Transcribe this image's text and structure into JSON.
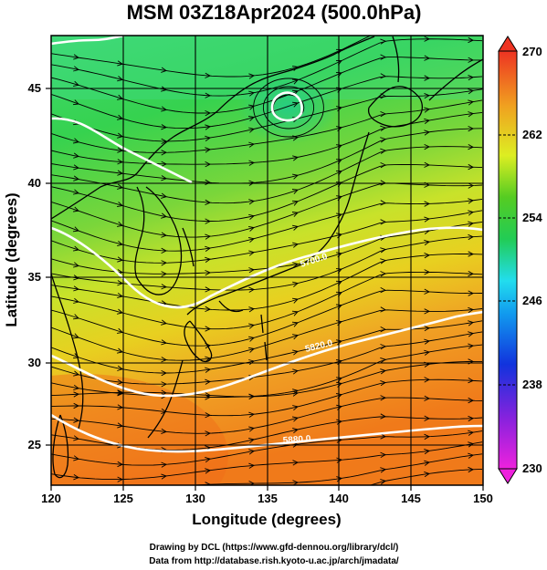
{
  "title": "MSM 03Z18Apr2024 (500.0hPa)",
  "map": {
    "xlabel": "Longitude (degrees)",
    "ylabel": "Latitude  (degrees)",
    "lon_range": [
      120,
      150
    ],
    "lat_range": [
      22.7,
      47.8
    ],
    "lon_ticks": [
      "120",
      "125",
      "130",
      "135",
      "140",
      "145",
      "150"
    ],
    "lat_ticks": [
      "25",
      "30",
      "35",
      "40",
      "45"
    ],
    "grid": true,
    "field": "temperature shading with wind streamlines"
  },
  "colorbar": {
    "ticks": [
      "230",
      "238",
      "246",
      "254",
      "262",
      "270"
    ],
    "min": 230,
    "max": 270,
    "colors": {
      "low": "#ee22dd",
      "blue": "#1133dd",
      "cyan": "#22ddee",
      "green": "#22cc44",
      "yellow": "#ddee22",
      "orange": "#f07a1a",
      "high": "#ee3322"
    }
  },
  "contours": {
    "color": "#ffffff",
    "labels": [
      "5700.0",
      "5820.0",
      "5880.0"
    ]
  },
  "footer": {
    "line1": "Drawing by DCL (https://www.gfd-dennou.org/library/dcl/)",
    "line2": "Data from http://database.rish.kyoto-u.ac.jp/arch/jmadata/"
  }
}
